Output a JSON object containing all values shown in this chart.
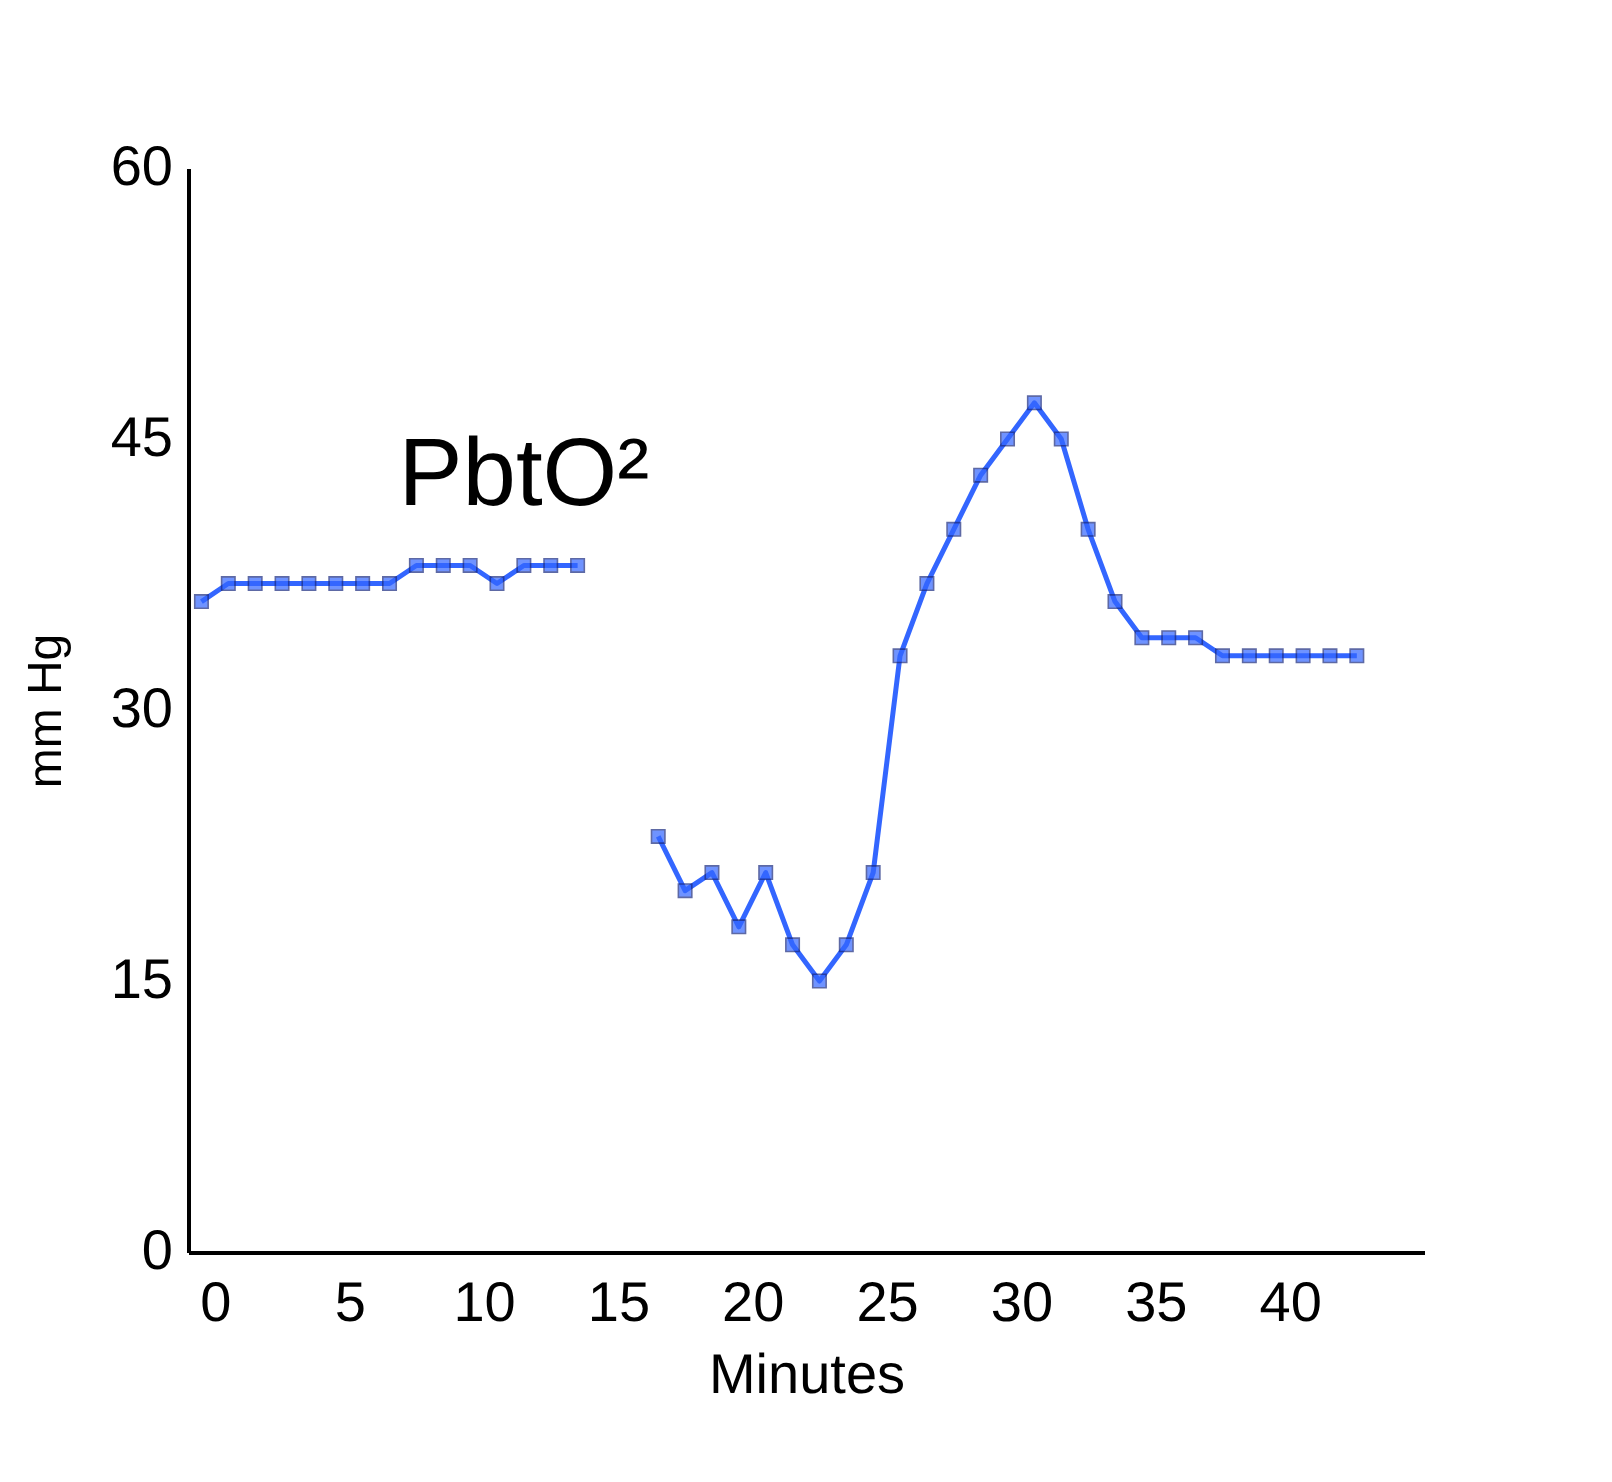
{
  "chart_data": {
    "type": "line",
    "xlabel": "Minutes",
    "ylabel": "mm Hg",
    "x": [
      -0.5,
      0.5,
      1.5,
      2.5,
      3.5,
      4.5,
      5.5,
      6.5,
      7.5,
      8.5,
      9.5,
      10.5,
      11.5,
      12.5,
      13.5,
      14.5,
      15.5,
      16.5,
      17.5,
      18.5,
      19.5,
      20.5,
      21.5,
      22.5,
      23.5,
      24.5,
      25.5,
      26.5,
      27.5,
      28.5,
      29.5,
      30.5,
      31.5,
      32.5,
      33.5,
      34.5,
      35.5,
      36.5,
      37.5,
      38.5,
      39.5,
      40.5,
      41.5,
      42.5
    ],
    "series": [
      {
        "name": "PbtO²",
        "color": "#3366ff",
        "values": [
          36,
          37,
          37,
          37,
          37,
          37,
          37,
          37,
          38,
          38,
          38,
          37,
          38,
          38,
          38,
          null,
          null,
          23,
          20,
          21,
          18,
          21,
          17,
          15,
          17,
          21,
          33,
          37,
          40,
          43,
          45,
          47,
          45,
          40,
          36,
          34,
          34,
          34,
          33,
          33,
          33,
          33,
          33,
          33
        ]
      }
    ],
    "xlim": [
      -1,
      45
    ],
    "xticks": [
      0,
      5,
      10,
      15,
      20,
      25,
      30,
      35,
      40
    ],
    "ylim": [
      0,
      60
    ],
    "yticks": [
      0,
      15,
      30,
      45,
      60
    ],
    "grid": false,
    "marker": "square",
    "line_style": "solid"
  }
}
